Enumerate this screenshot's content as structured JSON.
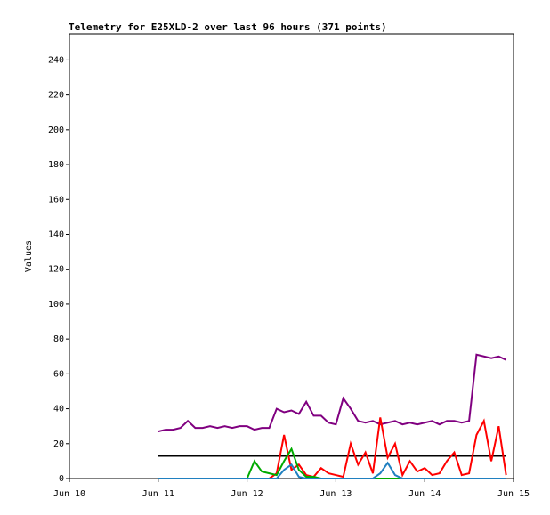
{
  "chart_data": {
    "type": "line",
    "title": "Telemetry for E25XLD-2 over last 96 hours (371 points)",
    "y_label": "Values",
    "x": [
      24,
      26,
      28,
      30,
      32,
      34,
      36,
      38,
      40,
      42,
      44,
      46,
      48,
      50,
      52,
      54,
      56,
      58,
      60,
      62,
      64,
      66,
      68,
      70,
      72,
      74,
      76,
      78,
      80,
      82,
      84,
      86,
      88,
      90,
      92,
      94,
      96,
      98,
      100,
      102,
      104,
      106,
      108,
      110,
      112,
      114,
      116,
      118
    ],
    "series": [
      {
        "color": "#800080",
        "values": [
          27,
          28,
          28,
          29,
          33,
          29,
          29,
          30,
          29,
          30,
          29,
          30,
          30,
          28,
          29,
          29,
          40,
          38,
          39,
          37,
          44,
          36,
          36,
          32,
          31,
          46,
          40,
          33,
          32,
          33,
          31,
          32,
          33,
          31,
          32,
          31,
          32,
          33,
          31,
          33,
          33,
          32,
          33,
          71,
          70,
          69,
          70,
          68
        ]
      },
      {
        "color": "#000000",
        "values": [
          13,
          13,
          13,
          13,
          13,
          13,
          13,
          13,
          13,
          13,
          13,
          13,
          13,
          13,
          13,
          13,
          13,
          13,
          13,
          13,
          13,
          13,
          13,
          13,
          13,
          13,
          13,
          13,
          13,
          13,
          13,
          13,
          13,
          13,
          13,
          13,
          13,
          13,
          13,
          13,
          13,
          13,
          13,
          13,
          13,
          13,
          13,
          13
        ]
      },
      {
        "color": "#ff0000",
        "values": [
          0,
          0,
          0,
          0,
          0,
          0,
          0,
          0,
          0,
          0,
          0,
          0,
          0,
          0,
          0,
          0,
          3,
          25,
          5,
          8,
          2,
          1,
          6,
          3,
          2,
          1,
          20,
          8,
          15,
          3,
          35,
          12,
          20,
          2,
          10,
          4,
          6,
          2,
          3,
          10,
          15,
          2,
          3,
          25,
          33,
          10,
          30,
          2
        ]
      },
      {
        "color": "#00aa00",
        "values": [
          0,
          0,
          0,
          0,
          0,
          0,
          0,
          0,
          0,
          0,
          0,
          0,
          0,
          10,
          4,
          3,
          2,
          10,
          17,
          5,
          1,
          1,
          0,
          0,
          0,
          0,
          0,
          0,
          0,
          0,
          0,
          0,
          0,
          0,
          0,
          0,
          0,
          0,
          0,
          0,
          0,
          0,
          0,
          0,
          0,
          0,
          0,
          0
        ]
      },
      {
        "color": "#2080c0",
        "values": [
          0,
          0,
          0,
          0,
          0,
          0,
          0,
          0,
          0,
          0,
          0,
          0,
          0,
          0,
          0,
          0,
          0,
          5,
          8,
          1,
          0,
          0,
          0,
          0,
          0,
          0,
          0,
          0,
          0,
          0,
          3,
          9,
          2,
          0,
          0,
          0,
          0,
          0,
          0,
          0,
          0,
          0,
          0,
          0,
          0,
          0,
          0,
          0
        ]
      }
    ],
    "xlim": [
      0,
      120
    ],
    "xticks": [
      {
        "value": 0,
        "label": "Jun 10"
      },
      {
        "value": 24,
        "label": "Jun 11"
      },
      {
        "value": 48,
        "label": "Jun 12"
      },
      {
        "value": 72,
        "label": "Jun 13"
      },
      {
        "value": 96,
        "label": "Jun 14"
      },
      {
        "value": 120,
        "label": "Jun 15"
      }
    ],
    "ylim": [
      0,
      255
    ],
    "yticks": [
      0,
      20,
      40,
      60,
      80,
      100,
      120,
      140,
      160,
      180,
      200,
      220,
      240
    ]
  }
}
